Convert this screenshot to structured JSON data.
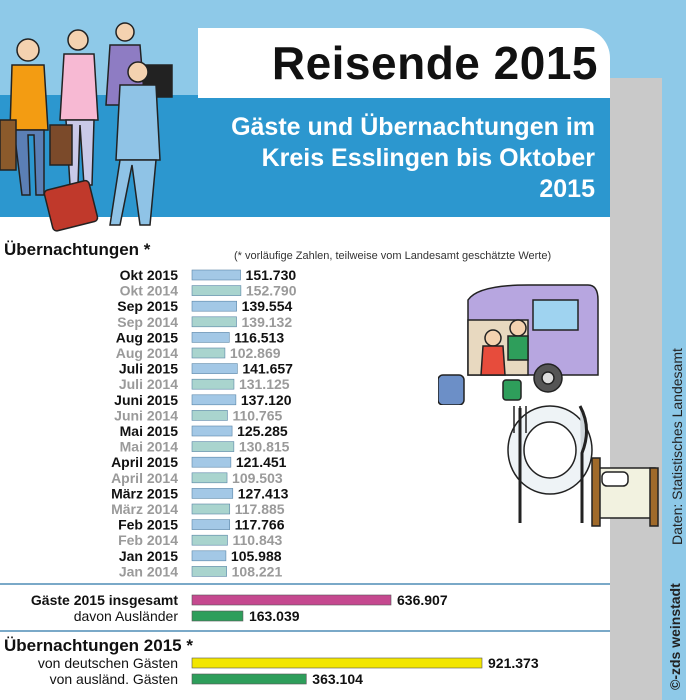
{
  "header": {
    "title": "Reisende 2015",
    "subtitle_lines": [
      "Gäste und Übernachtungen im",
      "Kreis Esslingen bis Oktober",
      "2015"
    ]
  },
  "sidebar": {
    "credit": "©-zds weinstadt",
    "source": "Daten: Statistisches Landesamt"
  },
  "colors": {
    "background": "#8ec9e8",
    "band": "#2c97cf",
    "bar_2015": "#a3c8e6",
    "bar_2014": "#a9d4ce",
    "bar_total": "#c5498f",
    "bar_foreign": "#2e9e5b",
    "bar_german": "#f2e600",
    "label_2014": "#9a9a9a"
  },
  "chart_data": [
    {
      "type": "bar",
      "title": "Übernachtungen *",
      "note": "(* vorläufige Zahlen, teilweise vom Landesamt geschätzte Werte)",
      "categories": [
        "Okt 2015",
        "Okt 2014",
        "Sep 2015",
        "Sep 2014",
        "Aug 2015",
        "Aug 2014",
        "Juli 2015",
        "Juli 2014",
        "Juni 2015",
        "Juni 2014",
        "Mai 2015",
        "Mai 2014",
        "April 2015",
        "April 2014",
        "März 2015",
        "März 2014",
        "Feb 2015",
        "Feb 2014",
        "Jan 2015",
        "Jan 2014"
      ],
      "values": [
        151730,
        152790,
        139554,
        139132,
        116513,
        102869,
        141657,
        131125,
        137120,
        110765,
        125285,
        130815,
        121451,
        109503,
        127413,
        117885,
        117766,
        110843,
        105988,
        108221
      ],
      "value_labels": [
        "151.730",
        "152.790",
        "139.554",
        "139.132",
        "116.513",
        "102.869",
        "141.657",
        "131.125",
        "137.120",
        "110.765",
        "125.285",
        "130.815",
        "121.451",
        "109.503",
        "127.413",
        "117.885",
        "117.766",
        "110.843",
        "105.988",
        "108.221"
      ],
      "series_years": [
        "2015",
        "2014",
        "2015",
        "2014",
        "2015",
        "2014",
        "2015",
        "2014",
        "2015",
        "2014",
        "2015",
        "2014",
        "2015",
        "2014",
        "2015",
        "2014",
        "2015",
        "2014",
        "2015",
        "2014"
      ]
    },
    {
      "type": "bar",
      "categories": [
        "Gäste 2015 insgesamt",
        "davon Ausländer"
      ],
      "values": [
        636907,
        163039
      ],
      "value_labels": [
        "636.907",
        "163.039"
      ]
    },
    {
      "type": "bar",
      "title": "Übernachtungen 2015 *",
      "categories": [
        "von deutschen Gästen",
        "von ausländ. Gästen"
      ],
      "values": [
        921373,
        363104
      ],
      "value_labels": [
        "921.373",
        "363.104"
      ]
    }
  ]
}
